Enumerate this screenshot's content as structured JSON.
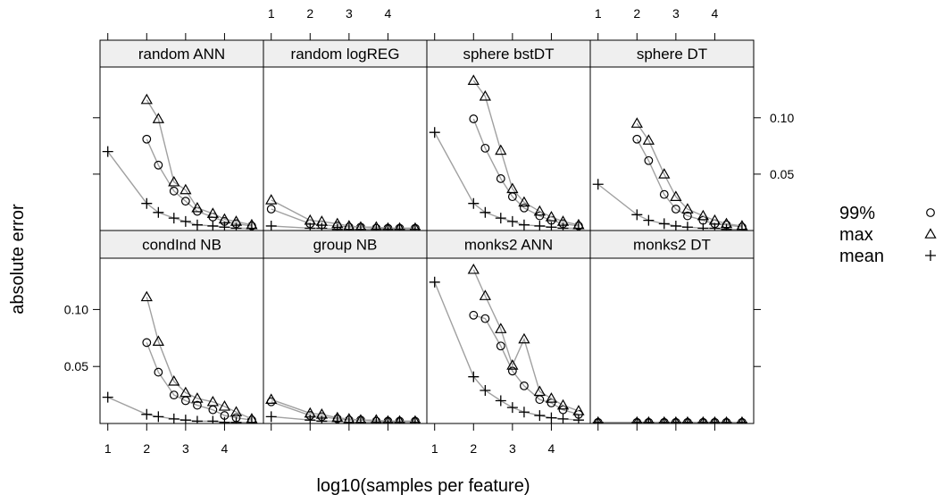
{
  "chart_data": {
    "type": "scatter",
    "title": "",
    "xlabel": "log10(samples per feature)",
    "ylabel": "absolute error",
    "xlim": [
      0.8,
      5.0
    ],
    "ylim": [
      0.0,
      0.145
    ],
    "x_ticks": [
      "1",
      "2",
      "3",
      "4"
    ],
    "y_ticks": [
      "0.05",
      "0.10"
    ],
    "layout": "4 columns x 2 rows of panels",
    "legend": {
      "position": "right",
      "entries": [
        {
          "label": "99%",
          "symbol": "circle-symbol"
        },
        {
          "label": "max",
          "symbol": "triangle-symbol"
        },
        {
          "label": "mean",
          "symbol": "plus-symbol"
        }
      ]
    },
    "x_grid": [
      1.0,
      2.0,
      2.3,
      2.7,
      3.0,
      3.3,
      3.7,
      4.0,
      4.3,
      4.7
    ],
    "line_color": "#a0a0a0",
    "strip_color": "#efefef",
    "panels": [
      {
        "name": "random ANN",
        "row": "top",
        "col": 1,
        "series": [
          {
            "name": "99%",
            "x": [
              2.0,
              2.3,
              2.7,
              3.0,
              3.3,
              3.7,
              4.0,
              4.3,
              4.7
            ],
            "y": [
              0.081,
              0.058,
              0.035,
              0.026,
              0.017,
              0.012,
              0.008,
              0.006,
              0.004
            ]
          },
          {
            "name": "max",
            "x": [
              2.0,
              2.3,
              2.7,
              3.0,
              3.3,
              3.7,
              4.0,
              4.3,
              4.7
            ],
            "y": [
              0.116,
              0.099,
              0.043,
              0.036,
              0.02,
              0.015,
              0.01,
              0.008,
              0.005
            ]
          },
          {
            "name": "mean",
            "x": [
              1.0,
              2.0,
              2.3,
              2.7,
              3.0,
              3.3,
              3.7,
              4.0,
              4.3,
              4.7
            ],
            "y": [
              0.07,
              0.024,
              0.016,
              0.011,
              0.008,
              0.005,
              0.004,
              0.003,
              0.002,
              0.002
            ]
          }
        ]
      },
      {
        "name": "random logREG",
        "row": "top",
        "col": 2,
        "series": [
          {
            "name": "99%",
            "x": [
              1.0,
              2.0,
              2.3,
              2.7,
              3.0,
              3.3,
              3.7,
              4.0,
              4.3,
              4.7
            ],
            "y": [
              0.019,
              0.006,
              0.005,
              0.004,
              0.003,
              0.003,
              0.002,
              0.002,
              0.002,
              0.002
            ]
          },
          {
            "name": "max",
            "x": [
              1.0,
              2.0,
              2.3,
              2.7,
              3.0,
              3.3,
              3.7,
              4.0,
              4.3,
              4.7
            ],
            "y": [
              0.027,
              0.009,
              0.008,
              0.006,
              0.004,
              0.003,
              0.003,
              0.002,
              0.002,
              0.002
            ]
          },
          {
            "name": "mean",
            "x": [
              1.0,
              2.0,
              2.3,
              2.7,
              3.0,
              3.3,
              3.7,
              4.0,
              4.3,
              4.7
            ],
            "y": [
              0.004,
              0.002,
              0.002,
              0.001,
              0.001,
              0.001,
              0.001,
              0.001,
              0.001,
              0.001
            ]
          }
        ]
      },
      {
        "name": "sphere bstDT",
        "row": "top",
        "col": 3,
        "series": [
          {
            "name": "99%",
            "x": [
              2.0,
              2.3,
              2.7,
              3.0,
              3.3,
              3.7,
              4.0,
              4.3,
              4.7
            ],
            "y": [
              0.099,
              0.073,
              0.046,
              0.03,
              0.02,
              0.013,
              0.009,
              0.006,
              0.004
            ]
          },
          {
            "name": "max",
            "x": [
              2.0,
              2.3,
              2.7,
              3.0,
              3.3,
              3.7,
              4.0,
              4.3,
              4.7
            ],
            "y": [
              0.133,
              0.119,
              0.071,
              0.037,
              0.025,
              0.017,
              0.012,
              0.008,
              0.005
            ]
          },
          {
            "name": "mean",
            "x": [
              1.0,
              2.0,
              2.3,
              2.7,
              3.0,
              3.3,
              3.7,
              4.0,
              4.3,
              4.7
            ],
            "y": [
              0.087,
              0.024,
              0.016,
              0.011,
              0.008,
              0.005,
              0.004,
              0.003,
              0.002,
              0.002
            ]
          }
        ]
      },
      {
        "name": "sphere DT",
        "row": "top",
        "col": 4,
        "series": [
          {
            "name": "99%",
            "x": [
              2.0,
              2.3,
              2.7,
              3.0,
              3.3,
              3.7,
              4.0,
              4.3,
              4.7
            ],
            "y": [
              0.081,
              0.062,
              0.032,
              0.019,
              0.013,
              0.009,
              0.006,
              0.005,
              0.003
            ]
          },
          {
            "name": "max",
            "x": [
              2.0,
              2.3,
              2.7,
              3.0,
              3.3,
              3.7,
              4.0,
              4.3,
              4.7
            ],
            "y": [
              0.095,
              0.08,
              0.05,
              0.03,
              0.019,
              0.013,
              0.009,
              0.006,
              0.004
            ]
          },
          {
            "name": "mean",
            "x": [
              1.0,
              2.0,
              2.3,
              2.7,
              3.0,
              3.3,
              3.7,
              4.0,
              4.3,
              4.7
            ],
            "y": [
              0.041,
              0.014,
              0.009,
              0.006,
              0.004,
              0.003,
              0.002,
              0.002,
              0.001,
              0.001
            ]
          }
        ]
      },
      {
        "name": "condInd NB",
        "row": "bottom",
        "col": 1,
        "series": [
          {
            "name": "99%",
            "x": [
              2.0,
              2.3,
              2.7,
              3.0,
              3.3,
              3.7,
              4.0,
              4.3,
              4.7
            ],
            "y": [
              0.071,
              0.045,
              0.025,
              0.02,
              0.016,
              0.012,
              0.007,
              0.005,
              0.003
            ]
          },
          {
            "name": "max",
            "x": [
              2.0,
              2.3,
              2.7,
              3.0,
              3.3,
              3.7,
              4.0,
              4.3,
              4.7
            ],
            "y": [
              0.111,
              0.072,
              0.037,
              0.027,
              0.022,
              0.019,
              0.015,
              0.01,
              0.004
            ]
          },
          {
            "name": "mean",
            "x": [
              1.0,
              2.0,
              2.3,
              2.7,
              3.0,
              3.3,
              3.7,
              4.0,
              4.3,
              4.7
            ],
            "y": [
              0.023,
              0.008,
              0.006,
              0.004,
              0.003,
              0.002,
              0.002,
              0.001,
              0.001,
              0.001
            ]
          }
        ]
      },
      {
        "name": "group NB",
        "row": "bottom",
        "col": 2,
        "series": [
          {
            "name": "99%",
            "x": [
              1.0,
              2.0,
              2.3,
              2.7,
              3.0,
              3.3,
              3.7,
              4.0,
              4.3,
              4.7
            ],
            "y": [
              0.019,
              0.007,
              0.006,
              0.004,
              0.003,
              0.003,
              0.002,
              0.002,
              0.002,
              0.002
            ]
          },
          {
            "name": "max",
            "x": [
              1.0,
              2.0,
              2.3,
              2.7,
              3.0,
              3.3,
              3.7,
              4.0,
              4.3,
              4.7
            ],
            "y": [
              0.021,
              0.009,
              0.008,
              0.005,
              0.004,
              0.003,
              0.003,
              0.002,
              0.002,
              0.002
            ]
          },
          {
            "name": "mean",
            "x": [
              1.0,
              2.0,
              2.3,
              2.7,
              3.0,
              3.3,
              3.7,
              4.0,
              4.3,
              4.7
            ],
            "y": [
              0.006,
              0.003,
              0.002,
              0.002,
              0.001,
              0.001,
              0.001,
              0.001,
              0.001,
              0.001
            ]
          }
        ]
      },
      {
        "name": "monks2 ANN",
        "row": "bottom",
        "col": 3,
        "series": [
          {
            "name": "99%",
            "x": [
              2.0,
              2.3,
              2.7,
              3.0,
              3.3,
              3.7,
              4.0,
              4.3,
              4.7
            ],
            "y": [
              0.095,
              0.092,
              0.068,
              0.046,
              0.033,
              0.021,
              0.018,
              0.012,
              0.008
            ]
          },
          {
            "name": "max",
            "x": [
              2.0,
              2.3,
              2.7,
              3.0,
              3.3,
              3.7,
              4.0,
              4.3,
              4.7
            ],
            "y": [
              0.135,
              0.112,
              0.083,
              0.051,
              0.074,
              0.028,
              0.022,
              0.016,
              0.011
            ]
          },
          {
            "name": "mean",
            "x": [
              1.0,
              2.0,
              2.3,
              2.7,
              3.0,
              3.3,
              3.7,
              4.0,
              4.3,
              4.7
            ],
            "y": [
              0.124,
              0.041,
              0.029,
              0.02,
              0.014,
              0.01,
              0.007,
              0.005,
              0.004,
              0.003
            ]
          }
        ]
      },
      {
        "name": "monks2 DT",
        "row": "bottom",
        "col": 4,
        "series": [
          {
            "name": "99%",
            "x": [
              1.0,
              2.0,
              2.3,
              2.7,
              3.0,
              3.3,
              3.7,
              4.0,
              4.3,
              4.7
            ],
            "y": [
              0.001,
              0.001,
              0.001,
              0.001,
              0.001,
              0.001,
              0.001,
              0.001,
              0.001,
              0.001
            ]
          },
          {
            "name": "max",
            "x": [
              1.0,
              2.0,
              2.3,
              2.7,
              3.0,
              3.3,
              3.7,
              4.0,
              4.3,
              4.7
            ],
            "y": [
              0.001,
              0.001,
              0.001,
              0.001,
              0.001,
              0.001,
              0.001,
              0.001,
              0.001,
              0.001
            ]
          },
          {
            "name": "mean",
            "x": [
              1.0,
              2.0,
              2.3,
              2.7,
              3.0,
              3.3,
              3.7,
              4.0,
              4.3,
              4.7
            ],
            "y": [
              0.001,
              0.001,
              0.001,
              0.001,
              0.001,
              0.001,
              0.001,
              0.001,
              0.001,
              0.001
            ]
          }
        ]
      }
    ]
  }
}
